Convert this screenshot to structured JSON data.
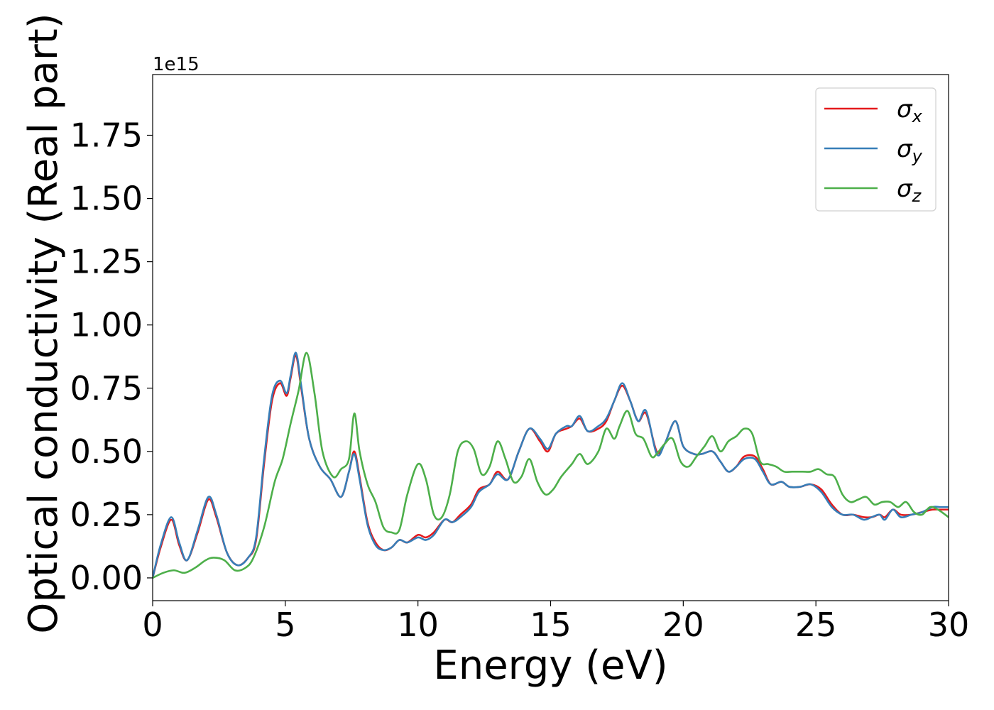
{
  "chart_data": {
    "type": "line",
    "xlabel": "Energy (eV)",
    "ylabel": "Optical conductivity (Real part)",
    "y_offset_text": "1e15",
    "xlim": [
      0,
      30
    ],
    "ylim": [
      -0.09,
      1.99
    ],
    "x_ticks": [
      0,
      5,
      10,
      15,
      20,
      25,
      30
    ],
    "x_tick_labels": [
      "0",
      "5",
      "10",
      "15",
      "20",
      "25",
      "30"
    ],
    "y_ticks": [
      0.0,
      0.25,
      0.5,
      0.75,
      1.0,
      1.25,
      1.5,
      1.75
    ],
    "y_tick_labels": [
      "0.00",
      "0.25",
      "0.50",
      "0.75",
      "1.00",
      "1.25",
      "1.50",
      "1.75"
    ],
    "grid": false,
    "legend_position": "top-right",
    "series": [
      {
        "name": "σx",
        "legend_base": "σ",
        "legend_sub": "x",
        "color": "#e41a1c",
        "points": [
          [
            0,
            0.0
          ],
          [
            0.3,
            0.12
          ],
          [
            0.7,
            0.23
          ],
          [
            1.0,
            0.13
          ],
          [
            1.3,
            0.07
          ],
          [
            1.7,
            0.18
          ],
          [
            2.1,
            0.31
          ],
          [
            2.4,
            0.24
          ],
          [
            2.8,
            0.1
          ],
          [
            3.2,
            0.05
          ],
          [
            3.6,
            0.08
          ],
          [
            3.9,
            0.15
          ],
          [
            4.2,
            0.45
          ],
          [
            4.5,
            0.7
          ],
          [
            4.8,
            0.77
          ],
          [
            5.05,
            0.72
          ],
          [
            5.2,
            0.79
          ],
          [
            5.4,
            0.88
          ],
          [
            5.6,
            0.75
          ],
          [
            5.9,
            0.55
          ],
          [
            6.3,
            0.44
          ],
          [
            6.7,
            0.39
          ],
          [
            7.1,
            0.32
          ],
          [
            7.4,
            0.42
          ],
          [
            7.6,
            0.5
          ],
          [
            7.8,
            0.4
          ],
          [
            8.1,
            0.22
          ],
          [
            8.4,
            0.14
          ],
          [
            8.7,
            0.11
          ],
          [
            9.0,
            0.12
          ],
          [
            9.3,
            0.15
          ],
          [
            9.6,
            0.14
          ],
          [
            10.0,
            0.17
          ],
          [
            10.3,
            0.16
          ],
          [
            10.6,
            0.18
          ],
          [
            11.0,
            0.23
          ],
          [
            11.3,
            0.22
          ],
          [
            11.6,
            0.25
          ],
          [
            12.0,
            0.29
          ],
          [
            12.3,
            0.35
          ],
          [
            12.7,
            0.37
          ],
          [
            13.0,
            0.42
          ],
          [
            13.4,
            0.39
          ],
          [
            13.8,
            0.5
          ],
          [
            14.2,
            0.59
          ],
          [
            14.6,
            0.54
          ],
          [
            14.9,
            0.5
          ],
          [
            15.2,
            0.57
          ],
          [
            15.6,
            0.59
          ],
          [
            15.8,
            0.6
          ],
          [
            16.1,
            0.63
          ],
          [
            16.4,
            0.58
          ],
          [
            16.8,
            0.59
          ],
          [
            17.1,
            0.62
          ],
          [
            17.4,
            0.7
          ],
          [
            17.7,
            0.76
          ],
          [
            18.0,
            0.7
          ],
          [
            18.3,
            0.62
          ],
          [
            18.6,
            0.65
          ],
          [
            19.0,
            0.5
          ],
          [
            19.3,
            0.53
          ],
          [
            19.7,
            0.62
          ],
          [
            20.0,
            0.52
          ],
          [
            20.4,
            0.49
          ],
          [
            20.7,
            0.49
          ],
          [
            21.1,
            0.5
          ],
          [
            21.4,
            0.46
          ],
          [
            21.7,
            0.42
          ],
          [
            22.0,
            0.44
          ],
          [
            22.3,
            0.48
          ],
          [
            22.7,
            0.48
          ],
          [
            23.0,
            0.43
          ],
          [
            23.3,
            0.37
          ],
          [
            23.7,
            0.38
          ],
          [
            24.0,
            0.36
          ],
          [
            24.4,
            0.36
          ],
          [
            24.8,
            0.37
          ],
          [
            25.2,
            0.35
          ],
          [
            25.6,
            0.29
          ],
          [
            26.0,
            0.25
          ],
          [
            26.4,
            0.25
          ],
          [
            26.8,
            0.24
          ],
          [
            27.1,
            0.24
          ],
          [
            27.4,
            0.25
          ],
          [
            27.6,
            0.24
          ],
          [
            27.9,
            0.27
          ],
          [
            28.2,
            0.25
          ],
          [
            28.6,
            0.25
          ],
          [
            29.0,
            0.26
          ],
          [
            29.4,
            0.27
          ],
          [
            29.7,
            0.27
          ],
          [
            30,
            0.27
          ]
        ]
      },
      {
        "name": "σy",
        "legend_base": "σ",
        "legend_sub": "y",
        "color": "#377eb8",
        "points": [
          [
            0,
            0.0
          ],
          [
            0.3,
            0.13
          ],
          [
            0.7,
            0.24
          ],
          [
            1.0,
            0.14
          ],
          [
            1.3,
            0.07
          ],
          [
            1.7,
            0.19
          ],
          [
            2.1,
            0.32
          ],
          [
            2.4,
            0.25
          ],
          [
            2.8,
            0.1
          ],
          [
            3.2,
            0.05
          ],
          [
            3.6,
            0.08
          ],
          [
            3.9,
            0.16
          ],
          [
            4.2,
            0.47
          ],
          [
            4.5,
            0.72
          ],
          [
            4.8,
            0.78
          ],
          [
            5.05,
            0.73
          ],
          [
            5.2,
            0.8
          ],
          [
            5.4,
            0.89
          ],
          [
            5.6,
            0.76
          ],
          [
            5.9,
            0.55
          ],
          [
            6.3,
            0.44
          ],
          [
            6.7,
            0.39
          ],
          [
            7.1,
            0.32
          ],
          [
            7.4,
            0.42
          ],
          [
            7.6,
            0.49
          ],
          [
            7.8,
            0.39
          ],
          [
            8.1,
            0.21
          ],
          [
            8.4,
            0.13
          ],
          [
            8.7,
            0.11
          ],
          [
            9.0,
            0.12
          ],
          [
            9.3,
            0.15
          ],
          [
            9.6,
            0.14
          ],
          [
            10.0,
            0.16
          ],
          [
            10.3,
            0.15
          ],
          [
            10.6,
            0.17
          ],
          [
            11.0,
            0.23
          ],
          [
            11.3,
            0.22
          ],
          [
            11.6,
            0.24
          ],
          [
            12.0,
            0.28
          ],
          [
            12.3,
            0.34
          ],
          [
            12.7,
            0.37
          ],
          [
            13.0,
            0.41
          ],
          [
            13.4,
            0.39
          ],
          [
            13.8,
            0.5
          ],
          [
            14.2,
            0.59
          ],
          [
            14.6,
            0.55
          ],
          [
            14.9,
            0.51
          ],
          [
            15.2,
            0.57
          ],
          [
            15.6,
            0.6
          ],
          [
            15.8,
            0.6
          ],
          [
            16.1,
            0.64
          ],
          [
            16.4,
            0.58
          ],
          [
            16.8,
            0.6
          ],
          [
            17.1,
            0.63
          ],
          [
            17.4,
            0.7
          ],
          [
            17.7,
            0.77
          ],
          [
            18.0,
            0.7
          ],
          [
            18.3,
            0.62
          ],
          [
            18.6,
            0.66
          ],
          [
            19.0,
            0.49
          ],
          [
            19.3,
            0.53
          ],
          [
            19.7,
            0.62
          ],
          [
            20.0,
            0.52
          ],
          [
            20.4,
            0.49
          ],
          [
            20.7,
            0.49
          ],
          [
            21.1,
            0.5
          ],
          [
            21.4,
            0.46
          ],
          [
            21.7,
            0.42
          ],
          [
            22.0,
            0.44
          ],
          [
            22.3,
            0.47
          ],
          [
            22.7,
            0.47
          ],
          [
            23.0,
            0.42
          ],
          [
            23.3,
            0.37
          ],
          [
            23.7,
            0.38
          ],
          [
            24.0,
            0.36
          ],
          [
            24.4,
            0.36
          ],
          [
            24.8,
            0.37
          ],
          [
            25.2,
            0.34
          ],
          [
            25.6,
            0.28
          ],
          [
            26.0,
            0.25
          ],
          [
            26.4,
            0.25
          ],
          [
            26.8,
            0.23
          ],
          [
            27.1,
            0.24
          ],
          [
            27.4,
            0.25
          ],
          [
            27.6,
            0.23
          ],
          [
            27.9,
            0.27
          ],
          [
            28.2,
            0.24
          ],
          [
            28.6,
            0.25
          ],
          [
            29.0,
            0.26
          ],
          [
            29.4,
            0.28
          ],
          [
            29.7,
            0.28
          ],
          [
            30,
            0.28
          ]
        ]
      },
      {
        "name": "σz",
        "legend_base": "σ",
        "legend_sub": "z",
        "color": "#4daf4a",
        "points": [
          [
            0,
            0.0
          ],
          [
            0.4,
            0.02
          ],
          [
            0.8,
            0.03
          ],
          [
            1.2,
            0.02
          ],
          [
            1.6,
            0.04
          ],
          [
            2.0,
            0.07
          ],
          [
            2.3,
            0.08
          ],
          [
            2.7,
            0.07
          ],
          [
            3.1,
            0.03
          ],
          [
            3.5,
            0.04
          ],
          [
            3.8,
            0.08
          ],
          [
            4.2,
            0.2
          ],
          [
            4.6,
            0.38
          ],
          [
            4.9,
            0.47
          ],
          [
            5.2,
            0.61
          ],
          [
            5.5,
            0.74
          ],
          [
            5.8,
            0.89
          ],
          [
            6.1,
            0.73
          ],
          [
            6.4,
            0.5
          ],
          [
            6.8,
            0.4
          ],
          [
            7.1,
            0.43
          ],
          [
            7.4,
            0.47
          ],
          [
            7.6,
            0.65
          ],
          [
            7.8,
            0.5
          ],
          [
            8.1,
            0.37
          ],
          [
            8.4,
            0.3
          ],
          [
            8.7,
            0.2
          ],
          [
            9.0,
            0.18
          ],
          [
            9.3,
            0.19
          ],
          [
            9.6,
            0.33
          ],
          [
            10.0,
            0.45
          ],
          [
            10.3,
            0.39
          ],
          [
            10.6,
            0.25
          ],
          [
            10.9,
            0.24
          ],
          [
            11.2,
            0.33
          ],
          [
            11.5,
            0.5
          ],
          [
            11.8,
            0.54
          ],
          [
            12.1,
            0.51
          ],
          [
            12.4,
            0.41
          ],
          [
            12.7,
            0.44
          ],
          [
            13.0,
            0.54
          ],
          [
            13.3,
            0.47
          ],
          [
            13.6,
            0.38
          ],
          [
            13.9,
            0.4
          ],
          [
            14.2,
            0.47
          ],
          [
            14.5,
            0.38
          ],
          [
            14.8,
            0.33
          ],
          [
            15.1,
            0.35
          ],
          [
            15.4,
            0.4
          ],
          [
            15.8,
            0.45
          ],
          [
            16.1,
            0.49
          ],
          [
            16.4,
            0.45
          ],
          [
            16.8,
            0.5
          ],
          [
            17.1,
            0.59
          ],
          [
            17.4,
            0.55
          ],
          [
            17.6,
            0.6
          ],
          [
            17.9,
            0.66
          ],
          [
            18.2,
            0.57
          ],
          [
            18.5,
            0.55
          ],
          [
            18.8,
            0.48
          ],
          [
            19.0,
            0.49
          ],
          [
            19.3,
            0.53
          ],
          [
            19.6,
            0.55
          ],
          [
            19.9,
            0.46
          ],
          [
            20.2,
            0.44
          ],
          [
            20.5,
            0.48
          ],
          [
            20.8,
            0.52
          ],
          [
            21.1,
            0.56
          ],
          [
            21.4,
            0.5
          ],
          [
            21.7,
            0.54
          ],
          [
            22.0,
            0.56
          ],
          [
            22.3,
            0.59
          ],
          [
            22.6,
            0.57
          ],
          [
            22.9,
            0.46
          ],
          [
            23.2,
            0.45
          ],
          [
            23.5,
            0.44
          ],
          [
            23.8,
            0.42
          ],
          [
            24.1,
            0.42
          ],
          [
            24.5,
            0.42
          ],
          [
            24.8,
            0.42
          ],
          [
            25.1,
            0.43
          ],
          [
            25.4,
            0.41
          ],
          [
            25.7,
            0.4
          ],
          [
            26.0,
            0.33
          ],
          [
            26.3,
            0.3
          ],
          [
            26.6,
            0.31
          ],
          [
            26.9,
            0.32
          ],
          [
            27.2,
            0.29
          ],
          [
            27.5,
            0.3
          ],
          [
            27.8,
            0.3
          ],
          [
            28.1,
            0.28
          ],
          [
            28.4,
            0.3
          ],
          [
            28.7,
            0.26
          ],
          [
            29.0,
            0.25
          ],
          [
            29.3,
            0.28
          ],
          [
            29.6,
            0.27
          ],
          [
            30,
            0.24
          ]
        ]
      }
    ]
  }
}
